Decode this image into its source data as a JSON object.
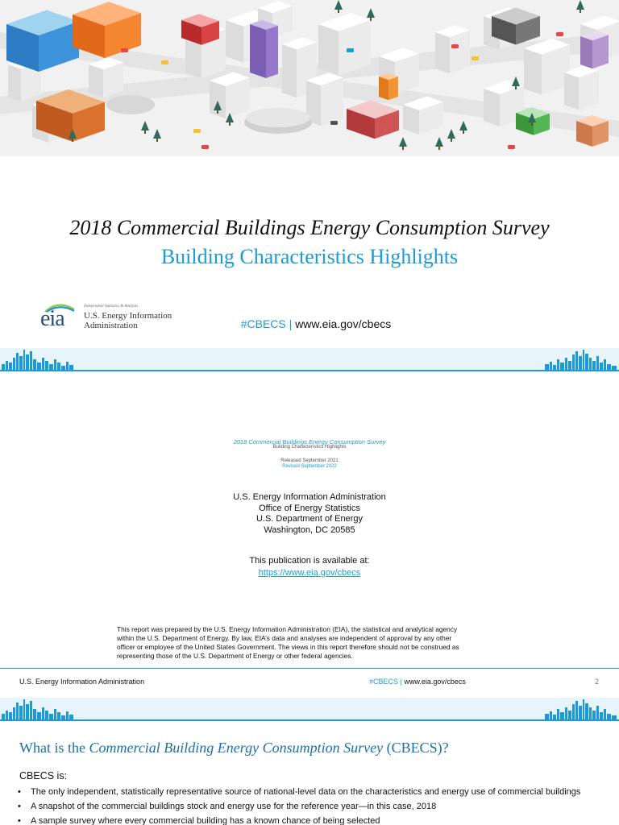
{
  "page1": {
    "title": "2018 Commercial Buildings Energy Consumption Survey",
    "subtitle": "Building Characteristics Highlights",
    "logo": {
      "mark": "eia",
      "tagline": "Independent Statistics & Analysis",
      "name_line1": "U.S. Energy Information",
      "name_line2": "Administration"
    },
    "hashtag": "#CBECS",
    "separator": "|",
    "url": "www.eia.gov/cbecs",
    "colors": {
      "accent": "#1a9bd7",
      "band": "#e8f4fb"
    }
  },
  "page2": {
    "title": "2018 Commercial Buildings Energy Consumption Survey",
    "subtitle": "Building Characteristics Highlights",
    "released": "Released September 2021",
    "revised": "Revised September 2022",
    "address": [
      "U.S. Energy Information Administration",
      "Office of Energy Statistics",
      "U.S. Department of Energy",
      "Washington, DC 20585"
    ],
    "available_label": "This publication is available at:",
    "available_link": "https://www.eia.gov/cbecs",
    "disclaimer": [
      "This report was prepared by the U.S. Energy Information Administration (EIA), the statistical and analytical agency",
      "within the U.S. Department of Energy. By law, EIA’s data and analyses are independent of approval by any other",
      "officer or employee of the United States Government. The views in this report therefore should not be construed as",
      "representing those of the U.S. Department of Energy or other federal agencies."
    ],
    "footer": {
      "agency": "U.S. Energy Information Administration",
      "hashtag": "#CBECS",
      "separator": "|",
      "url": "www.eia.gov/cbecs",
      "page_number": "2"
    }
  },
  "page3": {
    "title_prefix": "What is the ",
    "title_italic": "Commercial Building Energy Consumption Survey",
    "title_suffix": " (CBECS)?",
    "lead": "CBECS is:",
    "bullets": [
      "The only independent, statistically representative source of national-level data on the characteristics and energy use of commercial buildings",
      "A snapshot of the commercial buildings stock and energy use for the reference year—in this case, 2018",
      "A sample survey where every commercial building has a known chance of being selected"
    ]
  }
}
